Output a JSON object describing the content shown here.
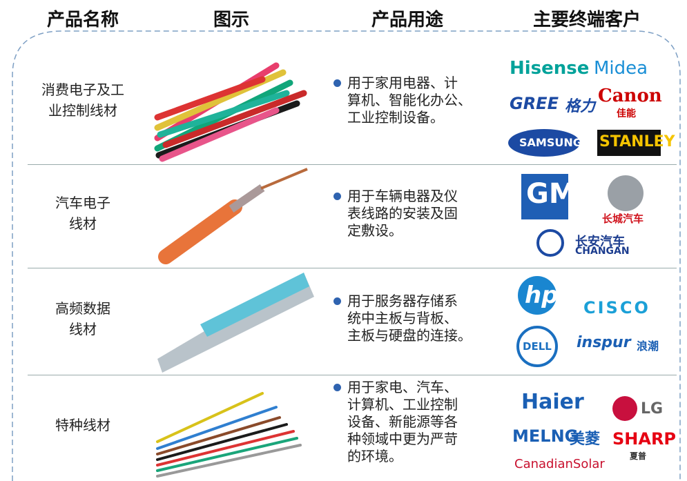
{
  "table": {
    "headers": [
      "产品名称",
      "图示",
      "产品用途",
      "主要终端客户"
    ],
    "rows": [
      {
        "name": [
          "消费电子及工",
          "业控制线材"
        ],
        "usage": [
          "用于家用电器、计",
          "算机、智能化办公、",
          "工业控制设备。"
        ],
        "customers": [
          "Hisense",
          "Midea",
          "GREE",
          "格力",
          "Canon",
          "佳能",
          "SAMSUNG",
          "STANLEY"
        ]
      },
      {
        "name": [
          "汽车电子",
          "线材"
        ],
        "usage": [
          "用于车辆电器及仪",
          "表线路的安装及固",
          "定敷设。"
        ],
        "customers": [
          "GM",
          "长城汽车",
          "长安汽车",
          "CHANGAN"
        ]
      },
      {
        "name": [
          "高频数据",
          "线材"
        ],
        "usage": [
          "用于服务器存储系",
          "统中主板与背板、",
          "主板与硬盘的连接。"
        ],
        "customers": [
          "hp",
          "CISCO",
          "DELL",
          "inspur",
          "浪潮"
        ]
      },
      {
        "name": [
          "特种线材"
        ],
        "usage": [
          "用于家电、汽车、",
          "计算机、工业控制",
          "设备、新能源等各",
          "种领域中更为严苛",
          "的环境。"
        ],
        "customers": [
          "Haier",
          "LG",
          "MELNG",
          "美菱",
          "SHARP",
          "夏普",
          "CanadianSolar"
        ]
      }
    ]
  }
}
